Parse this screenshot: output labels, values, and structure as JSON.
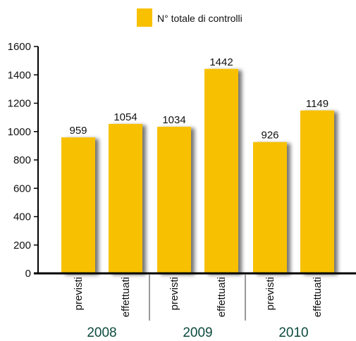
{
  "colors": {
    "bar": "#f7c000",
    "bar_shadow": "#7a7a7a",
    "axis": "#000000",
    "year_text": "#0c4a3c",
    "separator": "#333333"
  },
  "legend": {
    "label": "N° totale di controlli",
    "placement": "top-center"
  },
  "chart_data": {
    "type": "bar",
    "ylim": [
      0,
      1600
    ],
    "yticks": [
      0,
      200,
      400,
      600,
      800,
      1000,
      1200,
      1400,
      1600
    ],
    "groups": [
      {
        "year": "2008",
        "bars": [
          {
            "category": "previsti",
            "value": 959
          },
          {
            "category": "effettuati",
            "value": 1054
          }
        ]
      },
      {
        "year": "2009",
        "bars": [
          {
            "category": "previsti",
            "value": 1034
          },
          {
            "category": "effettuati",
            "value": 1442
          }
        ]
      },
      {
        "year": "2010",
        "bars": [
          {
            "category": "previsti",
            "value": 926
          },
          {
            "category": "effettuati",
            "value": 1149
          }
        ]
      }
    ],
    "series": [
      {
        "name": "N° totale di controlli",
        "values": [
          959,
          1054,
          1034,
          1442,
          926,
          1149
        ]
      }
    ],
    "grid": false
  }
}
